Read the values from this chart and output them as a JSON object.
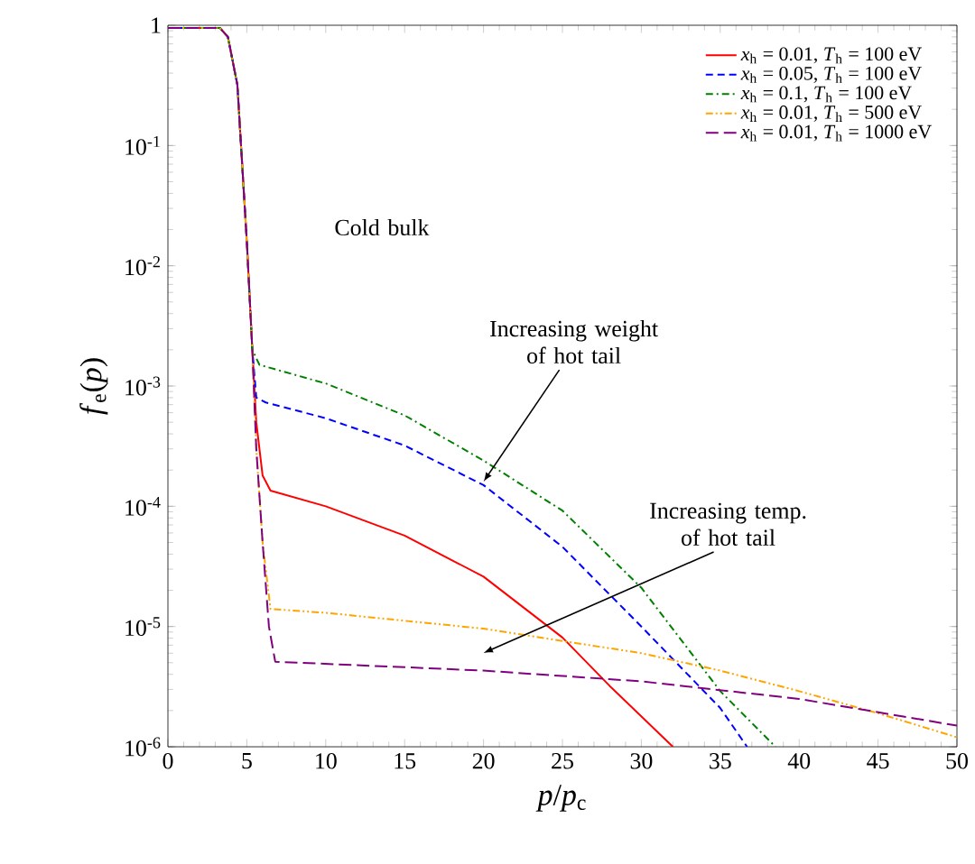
{
  "chart_data": {
    "type": "line",
    "xlabel": "*p*/*p*$_{c}$",
    "ylabel": "*f*$_{e}$(*p*)",
    "log": "y",
    "xlim": [
      0,
      50
    ],
    "ylim": [
      1e-06,
      1
    ],
    "xticks": [
      0,
      5,
      10,
      15,
      20,
      25,
      30,
      35,
      40,
      45,
      50
    ],
    "yticks": [
      {
        "value": 1e-06,
        "label": "10$^{-6}$"
      },
      {
        "value": 1e-05,
        "label": "10$^{-5}$"
      },
      {
        "value": 0.0001,
        "label": "10$^{-4}$"
      },
      {
        "value": 0.001,
        "label": "10$^{-3}$"
      },
      {
        "value": 0.01,
        "label": "10$^{-2}$"
      },
      {
        "value": 0.1,
        "label": "10$^{-1}$"
      },
      1
    ],
    "legend": "top right",
    "grid": false,
    "marker": "none",
    "annotations": [
      "Cold bulk",
      {
        "text": "Increasing weight of hot tail",
        "x": 20,
        "y": 0.00016
      },
      "Increasing temp. of hot tail"
    ],
    "series": [
      {
        "name": "*x*$_{h}$ = 0.01, *T*$_{h}$ = 100 eV",
        "color": "#ff0000",
        "line_style": "solid",
        "x": [
          0,
          3.3,
          3.8,
          4.4,
          5.0,
          5.35,
          5.6,
          6.0,
          6.5,
          10,
          15,
          20,
          25,
          28,
          32
        ],
        "values": [
          0.95,
          0.95,
          0.8,
          0.32,
          0.016,
          0.002,
          0.0005,
          0.00018,
          0.000135,
          0.0001,
          5.7e-05,
          2.6e-05,
          8.1e-06,
          3.2e-06,
          1e-06
        ]
      },
      {
        "name": "*x*$_{h}$ = 0.05, *T*$_{h}$ = 100 eV",
        "color": "#0000ff",
        "line_style": "dashed",
        "x": [
          0,
          3.3,
          3.8,
          4.4,
          5.0,
          5.35,
          5.6,
          6.2,
          10,
          15,
          20,
          25,
          30,
          35,
          36.7
        ],
        "values": [
          0.95,
          0.95,
          0.8,
          0.32,
          0.016,
          0.002,
          0.0008,
          0.00073,
          0.00054,
          0.00032,
          0.00015,
          4.6e-05,
          1e-05,
          2.1e-06,
          1e-06
        ]
      },
      {
        "name": "*x*$_{h}$ = 0.1, *T*$_{h}$ = 100 eV",
        "color": "#008000",
        "line_style": "dashdot",
        "x": [
          0,
          3.3,
          3.8,
          4.4,
          5.0,
          5.35,
          5.8,
          10,
          15,
          20,
          25,
          30,
          35,
          38.5
        ],
        "values": [
          0.95,
          0.95,
          0.8,
          0.32,
          0.016,
          0.002,
          0.0015,
          0.00105,
          0.00057,
          0.00024,
          9.2e-05,
          2.1e-05,
          2.9e-06,
          1e-06
        ]
      },
      {
        "name": "*x*$_{h}$ = 0.01, *T*$_{h}$ = 500 eV",
        "color": "#ffa500",
        "line_style": "dashdotdot",
        "x": [
          0,
          3.3,
          3.8,
          4.4,
          5.0,
          5.35,
          5.6,
          6.0,
          6.5,
          10,
          20,
          30,
          35,
          40,
          45,
          50
        ],
        "values": [
          0.95,
          0.95,
          0.8,
          0.32,
          0.016,
          0.002,
          0.0003,
          5e-05,
          1.4e-05,
          1.3e-05,
          9.6e-06,
          6e-06,
          4.3e-06,
          2.9e-06,
          1.9e-06,
          1.2e-06
        ]
      },
      {
        "name": "*x*$_{h}$ = 0.01, *T*$_{h}$ = 1000 eV",
        "color": "#800080",
        "line_style": "longdashed",
        "x": [
          0,
          3.3,
          3.8,
          4.4,
          5.0,
          5.35,
          5.6,
          6.0,
          6.4,
          6.8,
          20,
          30,
          40,
          50
        ],
        "values": [
          0.95,
          0.95,
          0.8,
          0.32,
          0.016,
          0.002,
          0.0003,
          5e-05,
          1e-05,
          5.1e-06,
          4.3e-06,
          3.5e-06,
          2.5e-06,
          1.5e-06
        ]
      }
    ]
  }
}
